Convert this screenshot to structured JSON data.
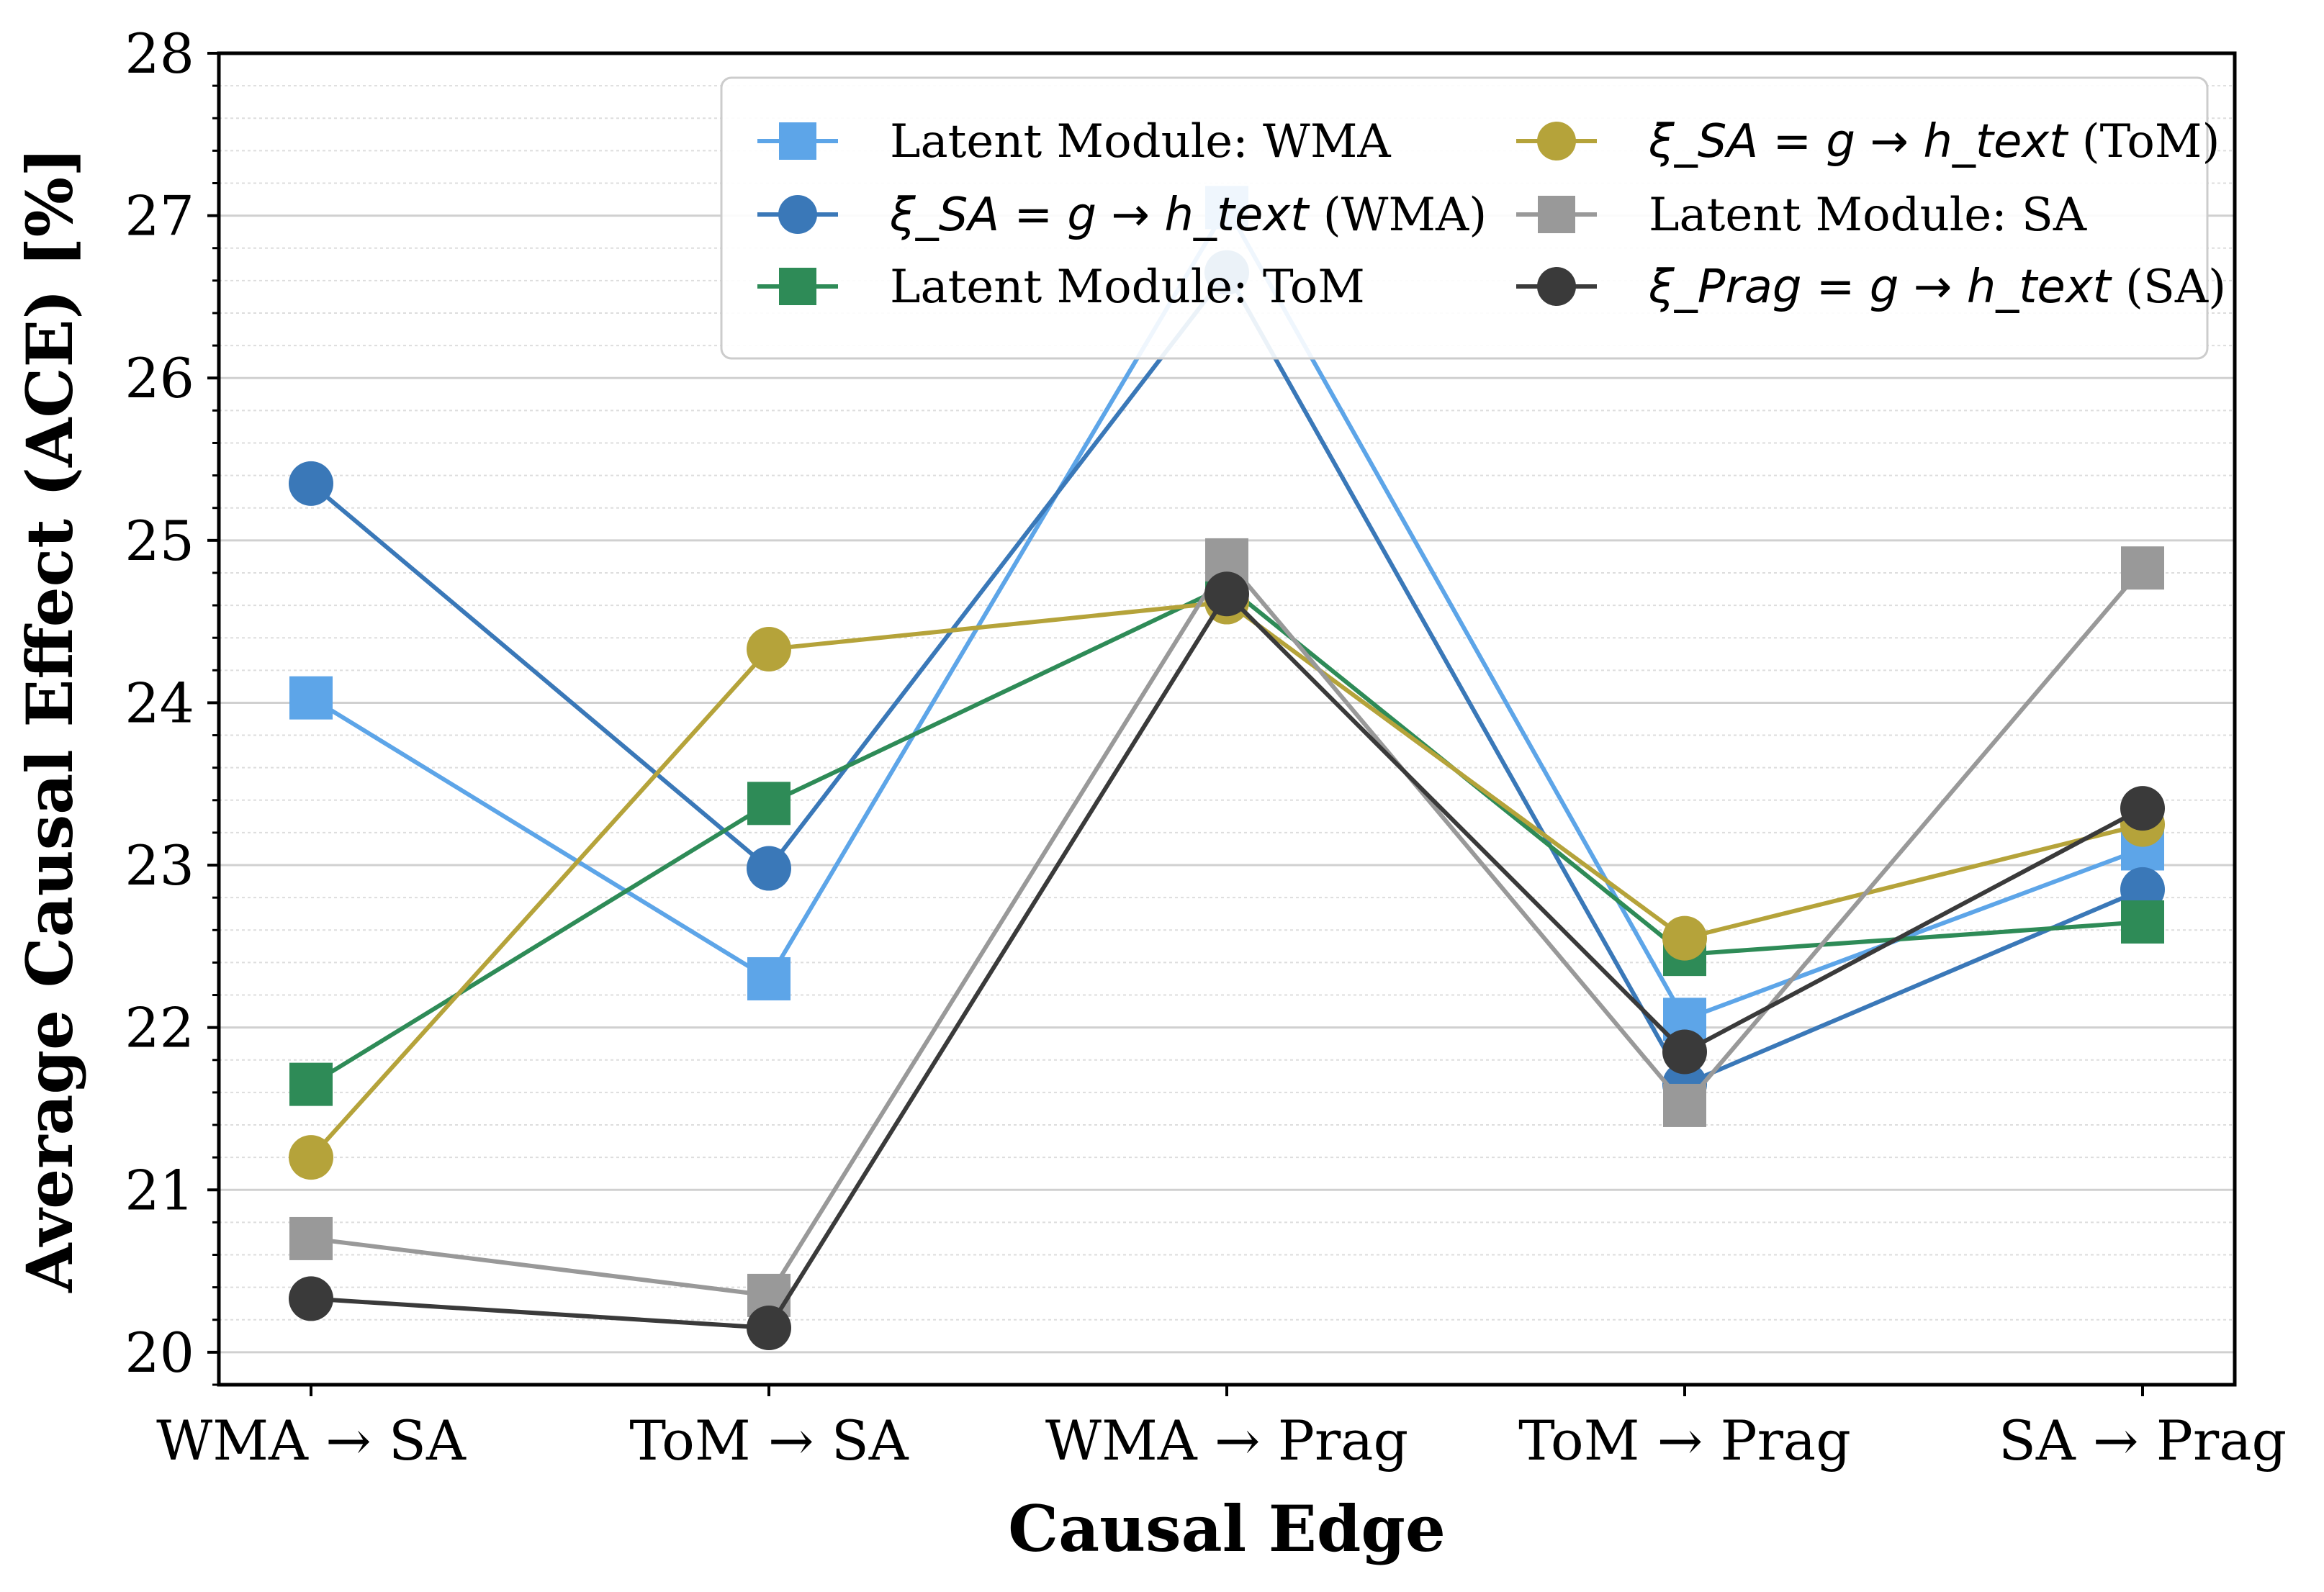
{
  "chart_data": {
    "type": "line",
    "title": "",
    "xlabel": "Causal Edge",
    "ylabel": "Average Causal Effect (ACE) [%]",
    "ylim": [
      19.8,
      28
    ],
    "yticks": [
      20,
      21,
      22,
      23,
      24,
      25,
      26,
      27,
      28
    ],
    "categories": [
      "WMA → SA",
      "ToM → SA",
      "WMA → Prag",
      "ToM → Prag",
      "SA → Prag"
    ],
    "grid": "horizontal major solid, minor dotted",
    "legend_position": "top-right",
    "series": [
      {
        "name": "Latent Module: WMA",
        "legend": {
          "prefix": "",
          "math": "",
          "suffix": "Latent Module: WMA"
        },
        "marker": "square",
        "color": "#5DA5E8",
        "values": [
          24.03,
          22.3,
          27.05,
          22.05,
          23.1
        ]
      },
      {
        "name": "ξ_SA = g → h_text (WMA)",
        "legend": {
          "prefix": "",
          "math": "ξ_SA = g → h_text",
          "suffix": " (WMA)"
        },
        "marker": "circle",
        "color": "#3A78B8",
        "values": [
          25.35,
          22.98,
          26.65,
          21.65,
          22.85
        ]
      },
      {
        "name": "Latent Module: ToM",
        "legend": {
          "prefix": "",
          "math": "",
          "suffix": "Latent Module: ToM"
        },
        "marker": "square",
        "color": "#2E8B57",
        "values": [
          21.65,
          23.38,
          24.72,
          22.45,
          22.65
        ]
      },
      {
        "name": "ξ_SA = g → h_text (ToM)",
        "legend": {
          "prefix": "",
          "math": "ξ_SA = g → h_text",
          "suffix": " (ToM)"
        },
        "marker": "circle",
        "color": "#B5A33A",
        "values": [
          21.2,
          24.33,
          24.62,
          22.55,
          23.25
        ]
      },
      {
        "name": "Latent Module: SA",
        "legend": {
          "prefix": "",
          "math": "",
          "suffix": "Latent Module: SA"
        },
        "marker": "square",
        "color": "#999999",
        "values": [
          20.7,
          20.35,
          24.88,
          21.52,
          24.83
        ]
      },
      {
        "name": "ξ_Prag = g → h_text (SA)",
        "legend": {
          "prefix": "",
          "math": "ξ_Prag = g → h_text",
          "suffix": " (SA)"
        },
        "marker": "circle",
        "color": "#3A3A3A",
        "values": [
          20.33,
          20.15,
          24.67,
          21.85,
          23.35
        ]
      }
    ]
  }
}
